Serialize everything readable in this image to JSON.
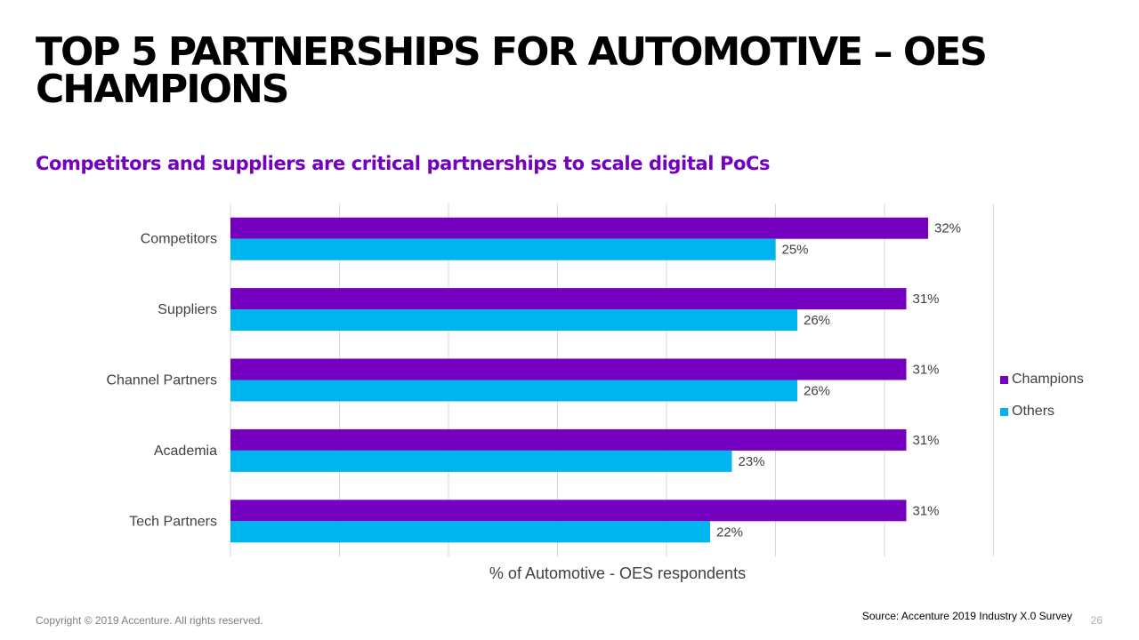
{
  "slide": {
    "title": "TOP 5 PARTNERSHIPS FOR AUTOMOTIVE – OES CHAMPIONS",
    "subtitle": "Competitors and suppliers are critical partnerships to scale digital PoCs",
    "copyright": "Copyright © 2019 Accenture. All rights reserved.",
    "source": "Source: Accenture 2019 Industry X.0 Survey",
    "page_number": "26"
  },
  "colors": {
    "accent": "#7500c0",
    "champions": "#7500c0",
    "others": "#00b4f0",
    "grid": "#d9d9d9"
  },
  "chart_data": {
    "type": "bar",
    "orientation": "horizontal",
    "title": "",
    "xlabel": "% of Automotive - OES respondents",
    "ylabel": "",
    "categories": [
      "Competitors",
      "Suppliers",
      "Channel Partners",
      "Academia",
      "Tech Partners"
    ],
    "series": [
      {
        "name": "Champions",
        "values": [
          32,
          31,
          31,
          31,
          31
        ],
        "labels": [
          "32%",
          "31%",
          "31%",
          "31%",
          "31%"
        ]
      },
      {
        "name": "Others",
        "values": [
          25,
          26,
          26,
          23,
          22
        ],
        "labels": [
          "25%",
          "26%",
          "26%",
          "23%",
          "22%"
        ]
      }
    ],
    "xlim": [
      0,
      35
    ],
    "grid": true,
    "tick_labels_visible": false,
    "legend_position": "right"
  }
}
